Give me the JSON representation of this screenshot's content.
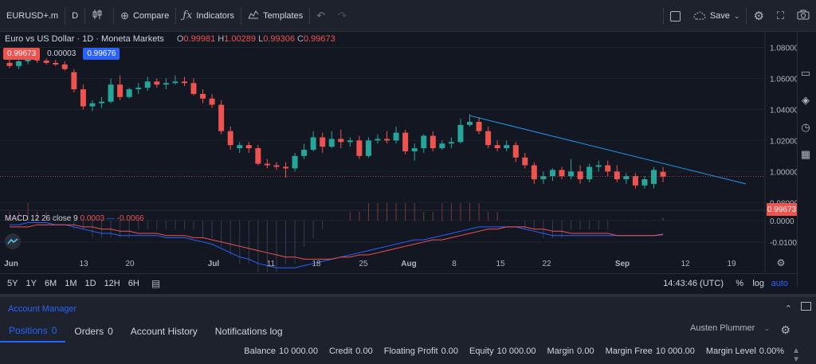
{
  "toolbar": {
    "symbol": "EURUSD+.m",
    "interval": "D",
    "compare": "Compare",
    "indicators": "Indicators",
    "templates": "Templates",
    "save": "Save"
  },
  "legend": {
    "title": "Euro vs US Dollar · 1D · Moneta Markets",
    "o_label": "O",
    "o": "0.99981",
    "h_label": "H",
    "h": "1.00289",
    "l_label": "L",
    "l": "0.99306",
    "c_label": "C",
    "c": "0.99673"
  },
  "quote": {
    "sell": "0.99673",
    "spread": "0.00003",
    "buy": "0.99676"
  },
  "macd": {
    "label": "MACD 12 26 close 9",
    "value1": "0.0003",
    "value2": "-0.0066"
  },
  "price_axis": [
    "1.08000",
    "1.06000",
    "1.04000",
    "1.02000",
    "1.00000",
    "0.98000"
  ],
  "price_tag": "0.99673",
  "macd_axis": [
    "0.0000",
    "-0.0100"
  ],
  "time_axis": [
    {
      "label": "Jun",
      "bold": true
    },
    {
      "label": "13",
      "bold": false
    },
    {
      "label": "20",
      "bold": false
    },
    {
      "label": "Jul",
      "bold": true
    },
    {
      "label": "11",
      "bold": false
    },
    {
      "label": "18",
      "bold": false
    },
    {
      "label": "25",
      "bold": false
    },
    {
      "label": "Aug",
      "bold": true
    },
    {
      "label": "8",
      "bold": false
    },
    {
      "label": "15",
      "bold": false
    },
    {
      "label": "22",
      "bold": false
    },
    {
      "label": "Sep",
      "bold": true
    },
    {
      "label": "12",
      "bold": false
    },
    {
      "label": "19",
      "bold": false
    }
  ],
  "ranges": [
    "5Y",
    "1Y",
    "6M",
    "1M",
    "1D",
    "12H",
    "6H"
  ],
  "clock": "14:43:46 (UTC)",
  "scale_pct": "%",
  "scale_log": "log",
  "scale_auto": "auto",
  "account": {
    "title": "Account Manager",
    "tabs": [
      {
        "label": "Positions",
        "count": "0"
      },
      {
        "label": "Orders",
        "count": "0"
      },
      {
        "label": "Account History",
        "count": ""
      },
      {
        "label": "Notifications log",
        "count": ""
      }
    ],
    "user": "Austen Plummer",
    "stats": [
      {
        "label": "Balance",
        "value": "10 000.00"
      },
      {
        "label": "Credit",
        "value": "0.00"
      },
      {
        "label": "Floating Profit",
        "value": "0.00"
      },
      {
        "label": "Equity",
        "value": "10 000.00"
      },
      {
        "label": "Margin",
        "value": "0.00"
      },
      {
        "label": "Margin Free",
        "value": "10 000.00"
      },
      {
        "label": "Margin Level",
        "value": "0.00%"
      }
    ]
  },
  "colors": {
    "up": "#26a69a",
    "down": "#ef5350",
    "trendline": "#2196f3",
    "macd_line": "#2962ff",
    "signal_line": "#ef5350"
  },
  "chart_data": {
    "type": "candlestick",
    "ylim": [
      0.975,
      1.09
    ],
    "candles": [
      {
        "o": 1.07,
        "h": 1.0735,
        "l": 1.0665,
        "c": 1.068
      },
      {
        "o": 1.068,
        "h": 1.072,
        "l": 1.066,
        "c": 1.071
      },
      {
        "o": 1.071,
        "h": 1.074,
        "l": 1.069,
        "c": 1.072
      },
      {
        "o": 1.072,
        "h": 1.0745,
        "l": 1.07,
        "c": 1.0715
      },
      {
        "o": 1.0715,
        "h": 1.073,
        "l": 1.069,
        "c": 1.07
      },
      {
        "o": 1.07,
        "h": 1.072,
        "l": 1.068,
        "c": 1.069
      },
      {
        "o": 1.069,
        "h": 1.071,
        "l": 1.065,
        "c": 1.066
      },
      {
        "o": 1.064,
        "h": 1.066,
        "l": 1.051,
        "c": 1.053
      },
      {
        "o": 1.053,
        "h": 1.056,
        "l": 1.04,
        "c": 1.042
      },
      {
        "o": 1.042,
        "h": 1.046,
        "l": 1.039,
        "c": 1.044
      },
      {
        "o": 1.044,
        "h": 1.048,
        "l": 1.041,
        "c": 1.045
      },
      {
        "o": 1.045,
        "h": 1.06,
        "l": 1.044,
        "c": 1.056
      },
      {
        "o": 1.056,
        "h": 1.062,
        "l": 1.046,
        "c": 1.048
      },
      {
        "o": 1.048,
        "h": 1.054,
        "l": 1.047,
        "c": 1.053
      },
      {
        "o": 1.053,
        "h": 1.057,
        "l": 1.05,
        "c": 1.054
      },
      {
        "o": 1.054,
        "h": 1.061,
        "l": 1.052,
        "c": 1.058
      },
      {
        "o": 1.058,
        "h": 1.06,
        "l": 1.054,
        "c": 1.056
      },
      {
        "o": 1.056,
        "h": 1.06,
        "l": 1.053,
        "c": 1.057
      },
      {
        "o": 1.057,
        "h": 1.062,
        "l": 1.056,
        "c": 1.058
      },
      {
        "o": 1.058,
        "h": 1.061,
        "l": 1.055,
        "c": 1.057
      },
      {
        "o": 1.057,
        "h": 1.06,
        "l": 1.049,
        "c": 1.05
      },
      {
        "o": 1.05,
        "h": 1.053,
        "l": 1.044,
        "c": 1.047
      },
      {
        "o": 1.047,
        "h": 1.05,
        "l": 1.041,
        "c": 1.043
      },
      {
        "o": 1.043,
        "h": 1.046,
        "l": 1.024,
        "c": 1.026
      },
      {
        "o": 1.026,
        "h": 1.029,
        "l": 1.014,
        "c": 1.017
      },
      {
        "o": 1.015,
        "h": 1.019,
        "l": 1.012,
        "c": 1.017
      },
      {
        "o": 1.017,
        "h": 1.019,
        "l": 1.012,
        "c": 1.015
      },
      {
        "o": 1.015,
        "h": 1.017,
        "l": 1.004,
        "c": 1.005
      },
      {
        "o": 1.005,
        "h": 1.008,
        "l": 1.002,
        "c": 1.004
      },
      {
        "o": 1.004,
        "h": 1.006,
        "l": 1.001,
        "c": 1.003
      },
      {
        "o": 1.003,
        "h": 1.006,
        "l": 0.996,
        "c": 1.002
      },
      {
        "o": 1.002,
        "h": 1.012,
        "l": 1.0,
        "c": 1.01
      },
      {
        "o": 1.01,
        "h": 1.018,
        "l": 1.008,
        "c": 1.014
      },
      {
        "o": 1.014,
        "h": 1.026,
        "l": 1.013,
        "c": 1.022
      },
      {
        "o": 1.022,
        "h": 1.025,
        "l": 1.012,
        "c": 1.016
      },
      {
        "o": 1.016,
        "h": 1.026,
        "l": 1.015,
        "c": 1.021
      },
      {
        "o": 1.021,
        "h": 1.027,
        "l": 1.015,
        "c": 1.019
      },
      {
        "o": 1.019,
        "h": 1.022,
        "l": 1.016,
        "c": 1.02
      },
      {
        "o": 1.02,
        "h": 1.023,
        "l": 1.008,
        "c": 1.01
      },
      {
        "o": 1.01,
        "h": 1.022,
        "l": 1.009,
        "c": 1.02
      },
      {
        "o": 1.02,
        "h": 1.024,
        "l": 1.018,
        "c": 1.021
      },
      {
        "o": 1.021,
        "h": 1.026,
        "l": 1.018,
        "c": 1.02
      },
      {
        "o": 1.02,
        "h": 1.029,
        "l": 1.018,
        "c": 1.025
      },
      {
        "o": 1.025,
        "h": 1.027,
        "l": 1.011,
        "c": 1.013
      },
      {
        "o": 1.013,
        "h": 1.018,
        "l": 1.007,
        "c": 1.015
      },
      {
        "o": 1.015,
        "h": 1.024,
        "l": 1.012,
        "c": 1.023
      },
      {
        "o": 1.023,
        "h": 1.026,
        "l": 1.013,
        "c": 1.015
      },
      {
        "o": 1.015,
        "h": 1.02,
        "l": 1.014,
        "c": 1.018
      },
      {
        "o": 1.018,
        "h": 1.022,
        "l": 1.015,
        "c": 1.019
      },
      {
        "o": 1.019,
        "h": 1.034,
        "l": 1.018,
        "c": 1.03
      },
      {
        "o": 1.03,
        "h": 1.037,
        "l": 1.029,
        "c": 1.032
      },
      {
        "o": 1.032,
        "h": 1.035,
        "l": 1.024,
        "c": 1.026
      },
      {
        "o": 1.026,
        "h": 1.029,
        "l": 1.015,
        "c": 1.017
      },
      {
        "o": 1.017,
        "h": 1.02,
        "l": 1.013,
        "c": 1.015
      },
      {
        "o": 1.015,
        "h": 1.02,
        "l": 1.013,
        "c": 1.017
      },
      {
        "o": 1.017,
        "h": 1.019,
        "l": 1.006,
        "c": 1.009
      },
      {
        "o": 1.009,
        "h": 1.012,
        "l": 1.002,
        "c": 1.004
      },
      {
        "o": 1.004,
        "h": 1.006,
        "l": 0.992,
        "c": 0.995
      },
      {
        "o": 0.995,
        "h": 1.0,
        "l": 0.992,
        "c": 0.997
      },
      {
        "o": 0.997,
        "h": 1.002,
        "l": 0.994,
        "c": 1.001
      },
      {
        "o": 1.001,
        "h": 1.003,
        "l": 0.995,
        "c": 0.997
      },
      {
        "o": 0.997,
        "h": 1.008,
        "l": 0.995,
        "c": 1.0
      },
      {
        "o": 1.0,
        "h": 1.004,
        "l": 0.992,
        "c": 0.995
      },
      {
        "o": 0.995,
        "h": 1.005,
        "l": 0.993,
        "c": 1.003
      },
      {
        "o": 1.003,
        "h": 1.007,
        "l": 1.0,
        "c": 1.004
      },
      {
        "o": 1.004,
        "h": 1.007,
        "l": 0.997,
        "c": 1.0
      },
      {
        "o": 1.0,
        "h": 1.004,
        "l": 0.993,
        "c": 0.995
      },
      {
        "o": 0.995,
        "h": 0.999,
        "l": 0.992,
        "c": 0.997
      },
      {
        "o": 0.997,
        "h": 0.999,
        "l": 0.989,
        "c": 0.991
      },
      {
        "o": 0.991,
        "h": 0.997,
        "l": 0.989,
        "c": 0.995
      },
      {
        "o": 0.992,
        "h": 1.003,
        "l": 0.989,
        "c": 1.001
      },
      {
        "o": 0.9998,
        "h": 1.0029,
        "l": 0.9931,
        "c": 0.9967
      }
    ],
    "trendline": [
      {
        "i": 50,
        "y": 1.036
      },
      {
        "i": 80,
        "y": 0.992
      }
    ],
    "macd": [
      -0.002,
      -0.002,
      -0.001,
      -0.001,
      -0.001,
      -0.002,
      -0.002,
      -0.003,
      -0.004,
      -0.005,
      -0.006,
      -0.006,
      -0.007,
      -0.007,
      -0.007,
      -0.007,
      -0.007,
      -0.008,
      -0.008,
      -0.008,
      -0.009,
      -0.01,
      -0.011,
      -0.013,
      -0.015,
      -0.017,
      -0.018,
      -0.02,
      -0.021,
      -0.022,
      -0.022,
      -0.022,
      -0.021,
      -0.02,
      -0.019,
      -0.018,
      -0.017,
      -0.016,
      -0.015,
      -0.014,
      -0.013,
      -0.012,
      -0.011,
      -0.01,
      -0.009,
      -0.009,
      -0.008,
      -0.007,
      -0.006,
      -0.005,
      -0.004,
      -0.003,
      -0.003,
      -0.003,
      -0.003,
      -0.003,
      -0.004,
      -0.005,
      -0.006,
      -0.007,
      -0.007,
      -0.007,
      -0.007,
      -0.007,
      -0.007,
      -0.007,
      -0.007,
      -0.007,
      -0.007,
      -0.007,
      -0.007,
      -0.0063
    ],
    "signal": [
      -0.003,
      -0.003,
      -0.003,
      -0.002,
      -0.002,
      -0.002,
      -0.002,
      -0.002,
      -0.003,
      -0.003,
      -0.004,
      -0.004,
      -0.005,
      -0.005,
      -0.006,
      -0.006,
      -0.006,
      -0.007,
      -0.007,
      -0.007,
      -0.008,
      -0.008,
      -0.009,
      -0.01,
      -0.011,
      -0.012,
      -0.013,
      -0.014,
      -0.015,
      -0.016,
      -0.017,
      -0.017,
      -0.018,
      -0.018,
      -0.018,
      -0.018,
      -0.017,
      -0.017,
      -0.016,
      -0.016,
      -0.015,
      -0.014,
      -0.013,
      -0.012,
      -0.011,
      -0.01,
      -0.009,
      -0.009,
      -0.008,
      -0.007,
      -0.006,
      -0.005,
      -0.004,
      -0.004,
      -0.003,
      -0.003,
      -0.003,
      -0.004,
      -0.004,
      -0.005,
      -0.005,
      -0.006,
      -0.006,
      -0.006,
      -0.006,
      -0.006,
      -0.007,
      -0.007,
      -0.007,
      -0.007,
      -0.007,
      -0.0066
    ],
    "macd_ylim": [
      -0.016,
      0.004
    ]
  }
}
